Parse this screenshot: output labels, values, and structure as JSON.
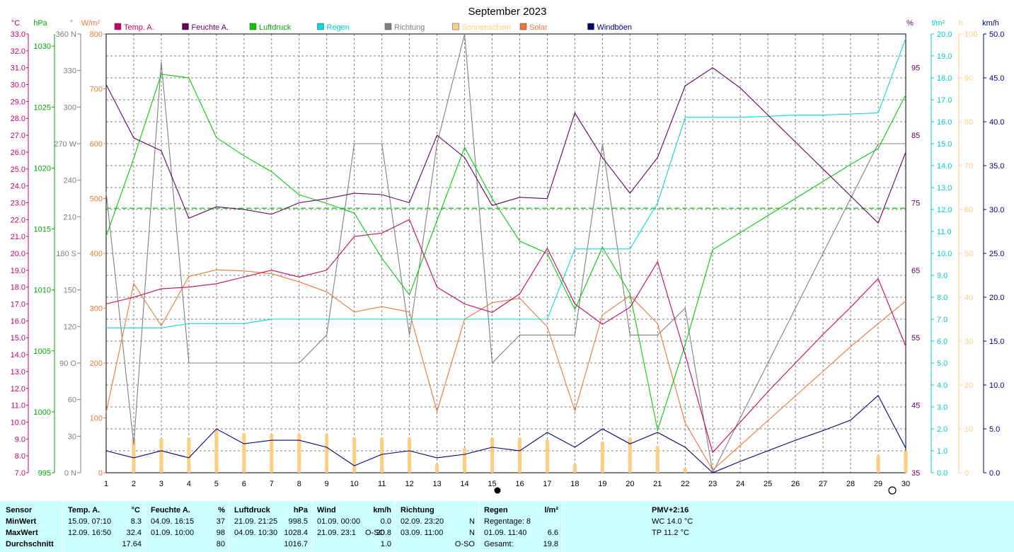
{
  "title": "September 2023",
  "colors": {
    "temp": "#cc0066",
    "hum": "#660066",
    "press": "#00cc00",
    "rain": "#00dddd",
    "dir": "#808080",
    "sun": "#ffcc80",
    "solar": "#ee7733",
    "gust": "#000080",
    "grid": "#808080"
  },
  "axis_units": {
    "temp": "°C",
    "press": "hPa",
    "dir": "°",
    "solar": "W/m²",
    "hum": "%",
    "rain": "l/m²",
    "sun": "h",
    "wind": "km/h"
  },
  "legend": [
    {
      "label": "Temp. A.",
      "color": "#cc0066",
      "text_color": "#cc0066"
    },
    {
      "label": "Feuchte A.",
      "color": "#660066",
      "text_color": "#660066"
    },
    {
      "label": "Luftdruck",
      "color": "#00cc00",
      "text_color": "#00aa00"
    },
    {
      "label": "Regen",
      "color": "#00dddd",
      "text_color": "#00cccc"
    },
    {
      "label": "Richtung",
      "color": "#808080",
      "text_color": "#808080"
    },
    {
      "label": "Sonnenschein",
      "color": "#ffcc80",
      "text_color": "#ffcc80"
    },
    {
      "label": "Solar",
      "color": "#ee7733",
      "text_color": "#ee7733"
    },
    {
      "label": "Windböen",
      "color": "#000080",
      "text_color": "#000080"
    }
  ],
  "chart_data": {
    "type": "line",
    "title": "September 2023",
    "x": [
      1,
      2,
      3,
      4,
      5,
      6,
      7,
      8,
      9,
      10,
      11,
      12,
      13,
      14,
      15,
      16,
      17,
      18,
      19,
      20,
      21,
      22,
      23,
      24,
      25,
      26,
      27,
      28,
      29,
      30
    ],
    "x_visible_labels": [
      "1",
      "2",
      "3",
      "4",
      "5",
      "6",
      "7",
      "8",
      "9",
      "10",
      "11",
      "12",
      "13",
      "14",
      "15",
      "16",
      "17",
      "18",
      "19",
      "20",
      "21",
      "22",
      "23",
      "24",
      "25",
      "26",
      "27",
      "28",
      "29",
      "30"
    ],
    "axes": {
      "temp": {
        "range": [
          7.0,
          33.0
        ],
        "ticks": [
          "7.0",
          "8.0",
          "9.0",
          "10.0",
          "11.0",
          "12.0",
          "13.0",
          "14.0",
          "15.0",
          "16.0",
          "17.0",
          "18.0",
          "19.0",
          "20.0",
          "21.0",
          "22.0",
          "23.0",
          "24.0",
          "25.0",
          "26.0",
          "27.0",
          "28.0",
          "29.0",
          "30.0",
          "31.0",
          "32.0",
          "33.0"
        ]
      },
      "press": {
        "range": [
          995,
          1031
        ],
        "ticks": [
          "995",
          "1000",
          "1005",
          "1010",
          "1015",
          "1020",
          "1025",
          "1030"
        ]
      },
      "dir": {
        "range": [
          0,
          360
        ],
        "ticks": [
          "0 N",
          "30",
          "60",
          "90 O",
          "120",
          "150",
          "180 S",
          "210",
          "240",
          "270 W",
          "300",
          "330",
          "360 N"
        ]
      },
      "solar": {
        "range": [
          0,
          800
        ],
        "ticks": [
          "0",
          "100",
          "200",
          "300",
          "400",
          "500",
          "600",
          "700",
          "800"
        ]
      },
      "hum": {
        "range": [
          35,
          100
        ],
        "ticks": [
          "35",
          "45",
          "55",
          "65",
          "75",
          "85",
          "95"
        ]
      },
      "rain": {
        "range": [
          0,
          20
        ],
        "ticks": [
          "0.0",
          "1.0",
          "2.0",
          "3.0",
          "4.0",
          "5.0",
          "6.0",
          "7.0",
          "8.0",
          "9.0",
          "10.0",
          "11.0",
          "12.0",
          "13.0",
          "14.0",
          "15.0",
          "16.0",
          "17.0",
          "18.0",
          "19.0",
          "20.0"
        ]
      },
      "sun": {
        "range": [
          0,
          100
        ],
        "ticks": [
          "0",
          "10",
          "20",
          "30",
          "40",
          "50",
          "60",
          "70",
          "80",
          "90",
          "100"
        ]
      },
      "wind": {
        "range": [
          0,
          50
        ],
        "ticks": [
          "0.0",
          "5.0",
          "10.0",
          "15.0",
          "20.0",
          "25.0",
          "30.0",
          "35.0",
          "40.0",
          "45.0",
          "50.0"
        ]
      }
    },
    "pressure_mean_line": 1016.7,
    "series": [
      {
        "key": "temp",
        "axis": "temp",
        "name": "Temp. A.",
        "values": [
          17.0,
          17.4,
          17.9,
          18.0,
          18.2,
          18.6,
          19.0,
          18.6,
          19.0,
          21.0,
          21.2,
          22.0,
          18.0,
          17.0,
          16.5,
          17.6,
          20.3,
          17.0,
          15.8,
          16.8,
          19.5,
          14.0,
          8.2,
          10.0,
          11.8,
          13.5,
          15.2,
          16.8,
          18.5,
          14.5
        ]
      },
      {
        "key": "hum",
        "axis": "hum",
        "name": "Feuchte A.",
        "values": [
          92.5,
          84.6,
          82.7,
          72.7,
          74.4,
          74.0,
          73.3,
          75.0,
          75.6,
          76.4,
          76.2,
          75.0,
          85.0,
          81.7,
          74.6,
          75.8,
          75.6,
          88.3,
          81.7,
          76.4,
          81.7,
          92.3,
          95.0,
          92.0,
          88.0,
          84.0,
          80.0,
          76.0,
          72.0,
          82.5
        ]
      },
      {
        "key": "press",
        "axis": "press",
        "name": "Luftdruck",
        "values": [
          1014.4,
          1020.8,
          1027.7,
          1027.4,
          1022.5,
          1021.0,
          1019.7,
          1017.8,
          1017.1,
          1016.3,
          1012.6,
          1009.6,
          1015.7,
          1021.7,
          1017.5,
          1014.0,
          1013.0,
          1008.4,
          1013.5,
          1009.7,
          998.5,
          1005.5,
          1013.3,
          1014.7,
          1016.1,
          1017.5,
          1018.9,
          1020.3,
          1021.6,
          1026.0
        ]
      },
      {
        "key": "rain",
        "axis": "rain",
        "name": "Regen",
        "values": [
          6.6,
          6.6,
          6.6,
          6.8,
          6.8,
          6.8,
          7.0,
          7.0,
          7.0,
          7.0,
          7.0,
          7.0,
          7.0,
          7.0,
          7.0,
          7.0,
          7.0,
          10.2,
          10.2,
          10.2,
          12.3,
          16.2,
          16.2,
          16.2,
          16.25,
          16.3,
          16.3,
          16.35,
          16.4,
          19.8
        ]
      },
      {
        "key": "dir",
        "axis": "dir",
        "name": "Richtung",
        "values": [
          230,
          23,
          337,
          90,
          90,
          90,
          90,
          90,
          113,
          270,
          270,
          113,
          270,
          360,
          90,
          113,
          113,
          113,
          270,
          113,
          113,
          135,
          0,
          45,
          90,
          135,
          180,
          225,
          270,
          270
        ]
      },
      {
        "key": "solar",
        "axis": "solar",
        "name": "Solar",
        "values": [
          110,
          345,
          268,
          358,
          370,
          368,
          363,
          348,
          330,
          293,
          303,
          293,
          112,
          280,
          310,
          318,
          266,
          113,
          288,
          323,
          272,
          91,
          5,
          50,
          95,
          140,
          185,
          230,
          272,
          313
        ]
      },
      {
        "key": "gust",
        "axis": "wind",
        "name": "Windböen",
        "values": [
          2.5,
          1.7,
          2.5,
          1.7,
          5.0,
          3.3,
          3.7,
          3.7,
          2.9,
          0.8,
          2.1,
          2.5,
          1.7,
          2.1,
          2.9,
          2.5,
          4.6,
          2.9,
          5.0,
          3.3,
          4.6,
          2.9,
          0.0,
          1.3,
          2.5,
          3.7,
          4.8,
          6.0,
          8.8,
          2.8
        ]
      }
    ],
    "sunshine_bars": [
      0,
      7.8,
      7.8,
      8.0,
      9.6,
      9.0,
      8.8,
      8.8,
      8.8,
      8.0,
      8.0,
      8.0,
      2.0,
      5.6,
      8.0,
      8.0,
      7.5,
      2.0,
      7.0,
      8.0,
      6.0,
      1.0,
      0,
      0,
      0,
      0,
      0,
      0,
      4.0,
      5.0
    ]
  },
  "stats": {
    "sensor": {
      "title": "Sensor",
      "rows": [
        "MinWert",
        "MaxWert",
        "Durchschnitt"
      ]
    },
    "temp": {
      "title": "Temp. A.",
      "unit": "°C",
      "min_time": "15.09.  07:10",
      "min_value": "8.3",
      "max_time": "12.09.  16:50",
      "max_value": "32.4",
      "avg": "17.64"
    },
    "hum": {
      "title": "Feuchte A.",
      "unit": "%",
      "min_time": "04.09.  16:15",
      "min_value": "37",
      "max_time": "01.09.  10:00",
      "max_value": "98",
      "avg": "80"
    },
    "press": {
      "title": "Luftdruck",
      "unit": "hPa",
      "min_time": "21.09.  21:25",
      "min_value": "998.5",
      "max_time": "04.09.  10:30",
      "max_value": "1028.4",
      "avg": "1016.7"
    },
    "wind": {
      "title": "Wind",
      "unit": "km/h",
      "min_time": "01.09.  00:00",
      "min_value": "0.0",
      "max_time": "21.09.  23:1",
      "max_dir": "O-SO",
      "max_value": "20.8",
      "avg": "1.0"
    },
    "dir": {
      "title": "Richtung",
      "min_time": "02.09.  23:20",
      "min_value": "N",
      "max_time": "03.09.  11:00",
      "max_value": "N",
      "avg": "O-SO"
    },
    "rain": {
      "title": "Regen",
      "unit": "l/m²",
      "days": "Regentage: 8",
      "max_time": "01.09.  11:40",
      "max_value": "6.6",
      "total_label": "Gesamt:",
      "total": "19.8"
    },
    "pmv": {
      "title": "PMV+2:16",
      "wc": "WC 14.0 °C",
      "tp": "TP 11.2 °C"
    }
  }
}
